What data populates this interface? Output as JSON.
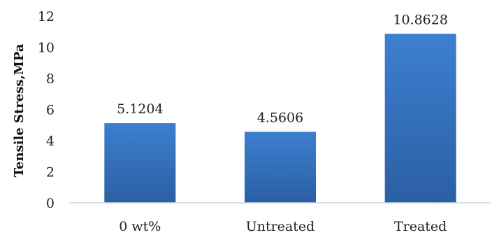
{
  "chart_data": {
    "type": "bar",
    "title": "",
    "xlabel": "",
    "ylabel": "Tensile Stress,MPa",
    "categories": [
      "0 wt%",
      "Untreated",
      "Treated"
    ],
    "values": [
      5.1204,
      4.5606,
      10.8628
    ],
    "data_labels": [
      "5.1204",
      "4.5606",
      "10.8628"
    ],
    "ylim": [
      0,
      12
    ],
    "yticks": [
      0,
      2,
      4,
      6,
      8,
      10,
      12
    ],
    "grid": false,
    "legend": "none",
    "colors": {
      "bar_top": "#3d7fd0",
      "bar_bottom": "#2b5fa3",
      "axis_line": "#c8d5ea"
    }
  }
}
